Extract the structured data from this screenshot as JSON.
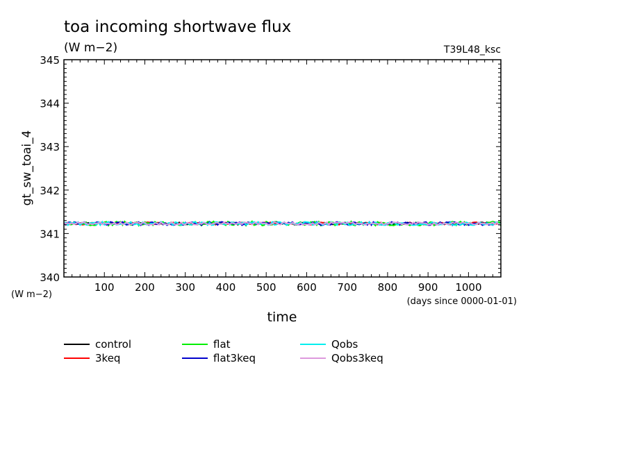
{
  "chart_data": {
    "type": "line",
    "title": "toa incoming shortwave flux",
    "subtitle": "(W m−2)",
    "run_label": "T39L48_ksc",
    "ylabel": "gt_sw_toai_4",
    "yunit": "(W m−2)",
    "xlabel": "time",
    "xunit": "(days since 0000-01-01)",
    "xlim": [
      0,
      1080
    ],
    "ylim": [
      340,
      345
    ],
    "xticks": [
      100,
      200,
      300,
      400,
      500,
      600,
      700,
      800,
      900,
      1000
    ],
    "yticks": [
      340,
      341,
      342,
      343,
      344,
      345
    ],
    "x_start": 0,
    "x_step": 5,
    "baseline": 341.23,
    "series": [
      {
        "name": "control",
        "color": "#000000",
        "amplitude": 0.03
      },
      {
        "name": "3keq",
        "color": "#ff0000",
        "amplitude": 0.03
      },
      {
        "name": "flat",
        "color": "#00ee00",
        "amplitude": 0.05
      },
      {
        "name": "flat3keq",
        "color": "#0000cc",
        "amplitude": 0.04
      },
      {
        "name": "Qobs",
        "color": "#00eeee",
        "amplitude": 0.04
      },
      {
        "name": "Qobs3keq",
        "color": "#dd99dd",
        "amplitude": 0.03
      }
    ],
    "legend": [
      {
        "name": "control",
        "color": "#000000"
      },
      {
        "name": "3keq",
        "color": "#ff0000"
      },
      {
        "name": "flat",
        "color": "#00ee00"
      },
      {
        "name": "flat3keq",
        "color": "#0000cc"
      },
      {
        "name": "Qobs",
        "color": "#00eeee"
      },
      {
        "name": "Qobs3keq",
        "color": "#dd99dd"
      }
    ],
    "legend_placement": "bottom-left",
    "grid": false
  }
}
